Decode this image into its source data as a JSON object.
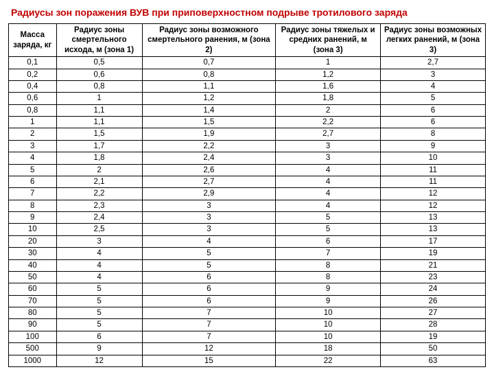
{
  "title": "Радиусы зон поражения ВУВ при приповерхностном подрыве тротилового заряда",
  "columns": [
    "Масса заряда, кг",
    "Радиус зоны смертельного исхода, м (зона 1)",
    "Радиус зоны возможного смертельного ранения, м (зона 2)",
    "Радиус зоны тяжелых и средних ранений, м (зона 3)",
    "Радиус зоны возможных легких ранений, м (зона 3)"
  ],
  "rows": [
    [
      "0,1",
      "0,5",
      "0,7",
      "1",
      "2,7"
    ],
    [
      "0,2",
      "0,6",
      "0,8",
      "1,2",
      "3"
    ],
    [
      "0,4",
      "0,8",
      "1,1",
      "1,6",
      "4"
    ],
    [
      "0,6",
      "1",
      "1,2",
      "1,8",
      "5"
    ],
    [
      "0,8",
      "1,1",
      "1,4",
      "2",
      "6"
    ],
    [
      "1",
      "1,1",
      "1,5",
      "2,2",
      "6"
    ],
    [
      "2",
      "1,5",
      "1,9",
      "2,7",
      "8"
    ],
    [
      "3",
      "1,7",
      "2,2",
      "3",
      "9"
    ],
    [
      "4",
      "1,8",
      "2,4",
      "3",
      "10"
    ],
    [
      "5",
      "2",
      "2,6",
      "4",
      "11"
    ],
    [
      "6",
      "2,1",
      "2,7",
      "4",
      "11"
    ],
    [
      "7",
      "2,2",
      "2,9",
      "4",
      "12"
    ],
    [
      "8",
      "2,3",
      "3",
      "4",
      "12"
    ],
    [
      "9",
      "2,4",
      "3",
      "5",
      "13"
    ],
    [
      "10",
      "2,5",
      "3",
      "5",
      "13"
    ],
    [
      "20",
      "3",
      "4",
      "6",
      "17"
    ],
    [
      "30",
      "4",
      "5",
      "7",
      "19"
    ],
    [
      "40",
      "4",
      "5",
      "8",
      "21"
    ],
    [
      "50",
      "4",
      "6",
      "8",
      "23"
    ],
    [
      "60",
      "5",
      "6",
      "9",
      "24"
    ],
    [
      "70",
      "5",
      "6",
      "9",
      "26"
    ],
    [
      "80",
      "5",
      "7",
      "10",
      "27"
    ],
    [
      "90",
      "5",
      "7",
      "10",
      "28"
    ],
    [
      "100",
      "6",
      "7",
      "10",
      "19"
    ],
    [
      "500",
      "9",
      "12",
      "18",
      "50"
    ],
    [
      "1000",
      "12",
      "15",
      "22",
      "63"
    ]
  ],
  "colors": {
    "title": "#c00000",
    "border": "#000000",
    "background": "#ffffff",
    "text": "#000000"
  },
  "col_widths_pct": [
    10,
    18,
    28,
    22,
    22
  ]
}
